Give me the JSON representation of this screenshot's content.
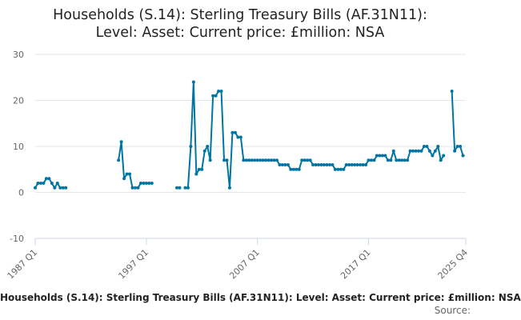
{
  "title_line1": "Households (S.14): Sterling Treasury Bills (AF.31N11):",
  "title_line2": "Level: Asset: Current price: £million: NSA",
  "legend_label": "Households (S.14): Sterling Treasury Bills (AF.31N11): Level: Asset: Current price: £million: NSA",
  "source_label": "Source:",
  "colors": {
    "series": "#0075a3",
    "grid": "#e6e6e6",
    "axis": "#ccd6eb",
    "tick": "#666666"
  },
  "chart_data": {
    "type": "line",
    "x_start": "1987 Q1",
    "x_end": "2025 Q4",
    "x_tick_labels": [
      "1987 Q1",
      "1997 Q1",
      "2007 Q1",
      "2017 Q1",
      "2025 Q4"
    ],
    "y_ticks": [
      -10,
      0,
      10,
      20,
      30
    ],
    "ylim": [
      -10,
      30
    ],
    "grid": true,
    "marker": "circle",
    "series": [
      {
        "values": [
          1,
          2,
          2,
          2,
          3,
          3,
          2,
          1,
          2,
          1,
          1,
          1,
          null,
          null,
          null,
          null,
          null,
          null,
          null,
          null,
          null,
          null,
          null,
          null,
          null,
          null,
          null,
          null,
          null,
          null,
          7,
          11,
          3,
          4,
          4,
          1,
          1,
          1,
          2,
          2,
          2,
          2,
          2,
          null,
          null,
          null,
          null,
          null,
          null,
          null,
          null,
          1,
          1,
          null,
          1,
          1,
          10,
          24,
          4,
          5,
          5,
          9,
          10,
          7,
          21,
          21,
          22,
          22,
          7,
          7,
          1,
          13,
          13,
          12,
          12,
          7,
          7,
          7,
          7,
          7,
          7,
          7,
          7,
          7,
          7,
          7,
          7,
          7,
          6,
          6,
          6,
          6,
          5,
          5,
          5,
          5,
          7,
          7,
          7,
          7,
          6,
          6,
          6,
          6,
          6,
          6,
          6,
          6,
          5,
          5,
          5,
          5,
          6,
          6,
          6,
          6,
          6,
          6,
          6,
          6,
          7,
          7,
          7,
          8,
          8,
          8,
          8,
          7,
          7,
          9,
          7,
          7,
          7,
          7,
          7,
          9,
          9,
          9,
          9,
          9,
          10,
          10,
          9,
          8,
          9,
          10,
          7,
          8,
          null,
          null,
          22,
          9,
          10,
          10,
          8
        ]
      }
    ]
  }
}
